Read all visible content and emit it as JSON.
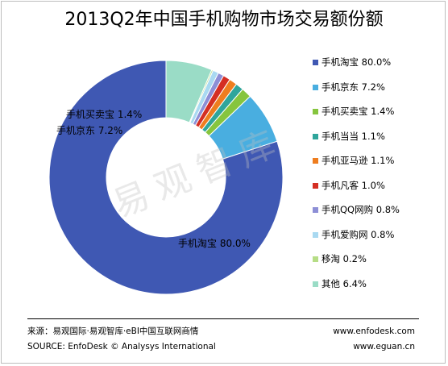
{
  "chart_data": {
    "type": "pie",
    "variant": "donut",
    "title": "2013Q2年中国手机购物市场交易额份额",
    "slices": [
      {
        "label": "手机淘宝",
        "value": 80.0,
        "display": "80.0%",
        "color": "#3f58b3"
      },
      {
        "label": "手机京东",
        "value": 7.2,
        "display": "7.2%",
        "color": "#49aee0"
      },
      {
        "label": "手机买卖宝",
        "value": 1.4,
        "display": "1.4%",
        "color": "#86c53e"
      },
      {
        "label": "手机当当",
        "value": 1.1,
        "display": "1.1%",
        "color": "#2fa59b"
      },
      {
        "label": "手机亚马逊",
        "value": 1.1,
        "display": "1.1%",
        "color": "#ee7d1f"
      },
      {
        "label": "手机凡客",
        "value": 1.0,
        "display": "1.0%",
        "color": "#d42e23"
      },
      {
        "label": "手机QQ网购",
        "value": 0.8,
        "display": "0.8%",
        "color": "#8d8fd6"
      },
      {
        "label": "手机爱购网",
        "value": 0.8,
        "display": "0.8%",
        "color": "#a9d9f1"
      },
      {
        "label": "移淘",
        "value": 0.2,
        "display": "0.2%",
        "color": "#b6dd86"
      },
      {
        "label": "其他",
        "value": 6.4,
        "display": "6.4%",
        "color": "#9adcc6"
      }
    ],
    "data_labels": [
      {
        "text": "手机淘宝 80.0%",
        "slice": "手机淘宝"
      },
      {
        "text": "手机京东 7.2%",
        "slice": "手机京东"
      },
      {
        "text": "手机买卖宝 1.4%",
        "slice": "手机买卖宝"
      }
    ],
    "legend_position": "right"
  },
  "watermark": "易观智库",
  "footer": {
    "source_cn": "来源：易观国际·易观智库·eBI中国互联网商情",
    "source_en": "SOURCE: EnfoDesk © Analysys International",
    "url1": "www.enfodesk.com",
    "url2": "www.eguan.cn"
  }
}
